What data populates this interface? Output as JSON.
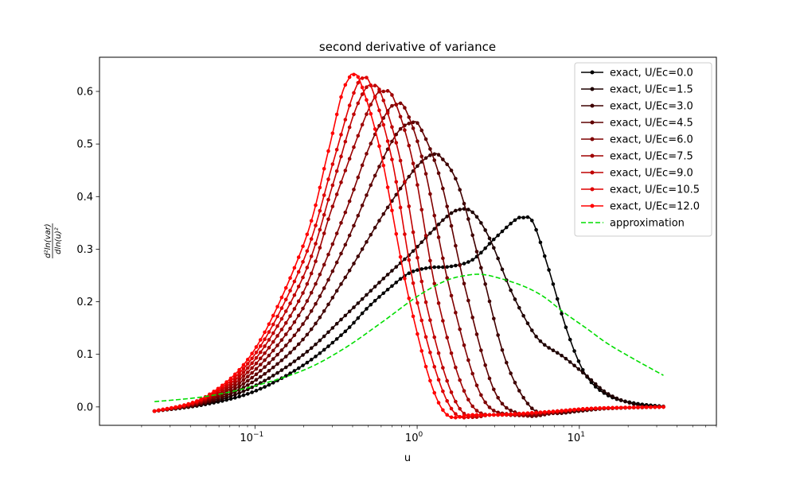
{
  "chart_data": {
    "type": "line",
    "title": "second derivative of variance",
    "xlabel": "u",
    "ylabel_num": "d²ln(var)",
    "ylabel_den": "dln(u)²",
    "xscale": "log",
    "xlim": [
      0.011,
      70
    ],
    "ylim": [
      -0.035,
      0.665
    ],
    "x_ticks": [
      {
        "value": 0.1,
        "base": "10",
        "exp": "−1"
      },
      {
        "value": 1,
        "base": "10",
        "exp": "0"
      },
      {
        "value": 10,
        "base": "10",
        "exp": "1"
      }
    ],
    "y_ticks": [
      {
        "value": 0.0,
        "label": "0.0"
      },
      {
        "value": 0.1,
        "label": "0.1"
      },
      {
        "value": 0.2,
        "label": "0.2"
      },
      {
        "value": 0.3,
        "label": "0.3"
      },
      {
        "value": 0.4,
        "label": "0.4"
      },
      {
        "value": 0.5,
        "label": "0.5"
      },
      {
        "value": 0.6,
        "label": "0.6"
      }
    ],
    "legend_position": "top-right",
    "series": [
      {
        "name": "exact, U/Ec=0.0",
        "color": "#000000",
        "style": "solid-marker",
        "points": [
          [
            0.024,
            -0.008
          ],
          [
            0.05,
            0.005
          ],
          [
            0.1,
            0.03
          ],
          [
            0.2,
            0.08
          ],
          [
            0.35,
            0.14
          ],
          [
            0.5,
            0.19
          ],
          [
            0.7,
            0.23
          ],
          [
            0.9,
            0.255
          ],
          [
            1.2,
            0.265
          ],
          [
            1.6,
            0.267
          ],
          [
            2.2,
            0.28
          ],
          [
            3.0,
            0.32
          ],
          [
            4.0,
            0.355
          ],
          [
            4.5,
            0.36
          ],
          [
            5.2,
            0.35
          ],
          [
            6.5,
            0.26
          ],
          [
            8.5,
            0.14
          ],
          [
            11,
            0.06
          ],
          [
            15,
            0.022
          ],
          [
            22,
            0.007
          ],
          [
            33,
            0.001
          ]
        ]
      },
      {
        "name": "exact, U/Ec=1.5",
        "color": "#1f0000",
        "style": "solid-marker",
        "points": [
          [
            0.024,
            -0.008
          ],
          [
            0.05,
            0.006
          ],
          [
            0.1,
            0.04
          ],
          [
            0.2,
            0.1
          ],
          [
            0.35,
            0.17
          ],
          [
            0.6,
            0.24
          ],
          [
            0.9,
            0.29
          ],
          [
            1.2,
            0.33
          ],
          [
            1.5,
            0.36
          ],
          [
            1.8,
            0.375
          ],
          [
            2.2,
            0.37
          ],
          [
            2.8,
            0.32
          ],
          [
            3.8,
            0.22
          ],
          [
            5,
            0.15
          ],
          [
            6,
            0.12
          ],
          [
            8,
            0.095
          ],
          [
            11,
            0.06
          ],
          [
            15,
            0.025
          ],
          [
            22,
            0.005
          ],
          [
            33,
            0.0
          ]
        ]
      },
      {
        "name": "exact, U/Ec=3.0",
        "color": "#3f0000",
        "style": "solid-marker",
        "points": [
          [
            0.024,
            -0.008
          ],
          [
            0.05,
            0.008
          ],
          [
            0.1,
            0.05
          ],
          [
            0.2,
            0.13
          ],
          [
            0.35,
            0.24
          ],
          [
            0.6,
            0.36
          ],
          [
            0.9,
            0.44
          ],
          [
            1.1,
            0.47
          ],
          [
            1.25,
            0.48
          ],
          [
            1.4,
            0.475
          ],
          [
            1.8,
            0.42
          ],
          [
            2.5,
            0.26
          ],
          [
            3.5,
            0.09
          ],
          [
            5,
            0.0
          ],
          [
            7,
            -0.012
          ],
          [
            10,
            -0.008
          ],
          [
            15,
            -0.003
          ],
          [
            33,
            0.0
          ]
        ]
      },
      {
        "name": "exact, U/Ec=4.5",
        "color": "#5f0000",
        "style": "solid-marker",
        "points": [
          [
            0.024,
            -0.008
          ],
          [
            0.05,
            0.01
          ],
          [
            0.1,
            0.06
          ],
          [
            0.2,
            0.16
          ],
          [
            0.35,
            0.3
          ],
          [
            0.55,
            0.44
          ],
          [
            0.75,
            0.52
          ],
          [
            0.92,
            0.54
          ],
          [
            1.05,
            0.53
          ],
          [
            1.4,
            0.43
          ],
          [
            2.0,
            0.22
          ],
          [
            3.0,
            0.03
          ],
          [
            4.5,
            -0.015
          ],
          [
            7,
            -0.012
          ],
          [
            12,
            -0.004
          ],
          [
            33,
            0.0
          ]
        ]
      },
      {
        "name": "exact, U/Ec=6.0",
        "color": "#7f0000",
        "style": "solid-marker",
        "points": [
          [
            0.024,
            -0.008
          ],
          [
            0.05,
            0.012
          ],
          [
            0.1,
            0.07
          ],
          [
            0.2,
            0.19
          ],
          [
            0.35,
            0.36
          ],
          [
            0.5,
            0.49
          ],
          [
            0.65,
            0.56
          ],
          [
            0.74,
            0.575
          ],
          [
            0.85,
            0.565
          ],
          [
            1.1,
            0.46
          ],
          [
            1.6,
            0.22
          ],
          [
            2.5,
            0.02
          ],
          [
            4,
            -0.015
          ],
          [
            7,
            -0.01
          ],
          [
            12,
            -0.003
          ],
          [
            33,
            0.0
          ]
        ]
      },
      {
        "name": "exact, U/Ec=7.5",
        "color": "#9f0000",
        "style": "solid-marker",
        "points": [
          [
            0.024,
            -0.008
          ],
          [
            0.05,
            0.014
          ],
          [
            0.1,
            0.08
          ],
          [
            0.2,
            0.22
          ],
          [
            0.3,
            0.38
          ],
          [
            0.45,
            0.53
          ],
          [
            0.55,
            0.59
          ],
          [
            0.62,
            0.6
          ],
          [
            0.72,
            0.585
          ],
          [
            0.95,
            0.46
          ],
          [
            1.35,
            0.2
          ],
          [
            2.1,
            0.01
          ],
          [
            3.5,
            -0.015
          ],
          [
            7,
            -0.01
          ],
          [
            12,
            -0.003
          ],
          [
            33,
            0.0
          ]
        ]
      },
      {
        "name": "exact, U/Ec=9.0",
        "color": "#bf0000",
        "style": "solid-marker",
        "points": [
          [
            0.024,
            -0.008
          ],
          [
            0.05,
            0.016
          ],
          [
            0.1,
            0.09
          ],
          [
            0.2,
            0.25
          ],
          [
            0.3,
            0.42
          ],
          [
            0.4,
            0.55
          ],
          [
            0.48,
            0.605
          ],
          [
            0.53,
            0.61
          ],
          [
            0.6,
            0.595
          ],
          [
            0.8,
            0.46
          ],
          [
            1.15,
            0.19
          ],
          [
            1.8,
            0.0
          ],
          [
            3,
            -0.015
          ],
          [
            6,
            -0.01
          ],
          [
            12,
            -0.003
          ],
          [
            33,
            0.0
          ]
        ]
      },
      {
        "name": "exact, U/Ec=10.5",
        "color": "#df0000",
        "style": "solid-marker",
        "points": [
          [
            0.024,
            -0.008
          ],
          [
            0.05,
            0.018
          ],
          [
            0.1,
            0.1
          ],
          [
            0.2,
            0.28
          ],
          [
            0.3,
            0.46
          ],
          [
            0.38,
            0.57
          ],
          [
            0.43,
            0.615
          ],
          [
            0.46,
            0.625
          ],
          [
            0.52,
            0.61
          ],
          [
            0.7,
            0.47
          ],
          [
            1.0,
            0.2
          ],
          [
            1.6,
            0.0
          ],
          [
            2.6,
            -0.015
          ],
          [
            6,
            -0.01
          ],
          [
            12,
            -0.003
          ],
          [
            33,
            0.0
          ]
        ]
      },
      {
        "name": "exact, U/Ec=12.0",
        "color": "#ff0000",
        "style": "solid-marker",
        "points": [
          [
            0.024,
            -0.008
          ],
          [
            0.05,
            0.02
          ],
          [
            0.1,
            0.11
          ],
          [
            0.2,
            0.31
          ],
          [
            0.28,
            0.48
          ],
          [
            0.34,
            0.59
          ],
          [
            0.38,
            0.625
          ],
          [
            0.4,
            0.632
          ],
          [
            0.45,
            0.615
          ],
          [
            0.6,
            0.48
          ],
          [
            0.9,
            0.2
          ],
          [
            1.4,
            0.0
          ],
          [
            2.3,
            -0.015
          ],
          [
            6,
            -0.01
          ],
          [
            12,
            -0.003
          ],
          [
            33,
            0.0
          ]
        ]
      },
      {
        "name": "approximation",
        "color": "#00dd00",
        "style": "dashed",
        "points": [
          [
            0.024,
            0.01
          ],
          [
            0.05,
            0.02
          ],
          [
            0.1,
            0.04
          ],
          [
            0.2,
            0.07
          ],
          [
            0.35,
            0.11
          ],
          [
            0.6,
            0.16
          ],
          [
            1.0,
            0.21
          ],
          [
            1.5,
            0.24
          ],
          [
            2.0,
            0.25
          ],
          [
            2.5,
            0.252
          ],
          [
            3.2,
            0.245
          ],
          [
            4.5,
            0.23
          ],
          [
            6,
            0.21
          ],
          [
            8,
            0.18
          ],
          [
            11,
            0.15
          ],
          [
            15,
            0.12
          ],
          [
            22,
            0.09
          ],
          [
            33,
            0.06
          ]
        ]
      }
    ]
  }
}
